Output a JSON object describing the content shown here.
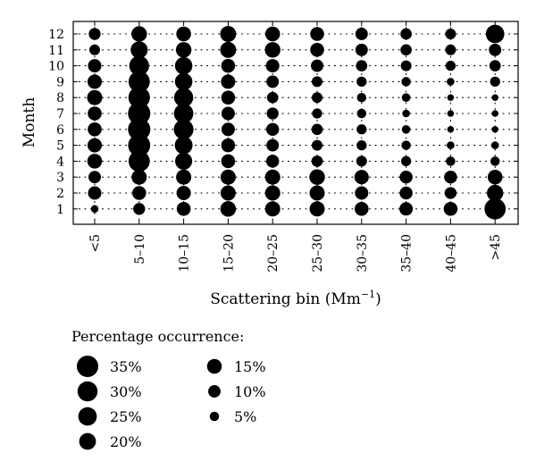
{
  "chart_data": {
    "type": "bubble-grid",
    "xlabel": "Scattering bin (Mm",
    "xlabel_sup": "−1",
    "xlabel_tail": ")",
    "ylabel": "Month",
    "categories": [
      "<5",
      "5–10",
      "10–15",
      "15–20",
      "20–25",
      "25–30",
      "30–35",
      "35–40",
      "40–45",
      ">45"
    ],
    "months": [
      1,
      2,
      3,
      4,
      5,
      6,
      7,
      8,
      9,
      10,
      11,
      12
    ],
    "grid": "dotted",
    "value_unit": "percentage occurrence",
    "percent_by_month": [
      [
        3,
        9,
        13,
        17,
        16,
        16,
        13,
        12,
        13,
        34
      ],
      [
        12,
        13,
        14,
        16,
        16,
        16,
        12,
        11,
        9,
        19
      ],
      [
        10,
        16,
        16,
        16,
        16,
        17,
        14,
        11,
        11,
        15
      ],
      [
        15,
        34,
        21,
        13,
        11,
        8,
        7,
        6,
        5,
        5
      ],
      [
        14,
        37,
        23,
        13,
        10,
        7,
        6,
        5,
        3,
        3
      ],
      [
        13,
        38,
        29,
        12,
        11,
        8,
        6,
        4,
        2,
        2
      ],
      [
        13,
        38,
        28,
        12,
        9,
        6,
        5,
        3,
        2,
        2
      ],
      [
        16,
        35,
        27,
        13,
        8,
        7,
        5,
        4,
        2,
        2
      ],
      [
        14,
        34,
        22,
        14,
        10,
        7,
        6,
        5,
        3,
        6
      ],
      [
        12,
        29,
        22,
        13,
        12,
        10,
        8,
        7,
        6,
        8
      ],
      [
        7,
        21,
        17,
        18,
        17,
        13,
        10,
        8,
        7,
        10
      ],
      [
        9,
        17,
        15,
        18,
        15,
        13,
        10,
        8,
        7,
        25
      ]
    ],
    "legend": {
      "title": "Percentage occurrence:",
      "entries": [
        {
          "value": 35,
          "label": "35%"
        },
        {
          "value": 30,
          "label": "30%"
        },
        {
          "value": 25,
          "label": "25%"
        },
        {
          "value": 20,
          "label": "20%"
        },
        {
          "value": 15,
          "label": "15%"
        },
        {
          "value": 10,
          "label": "10%"
        },
        {
          "value": 5,
          "label": "5%"
        }
      ]
    }
  }
}
